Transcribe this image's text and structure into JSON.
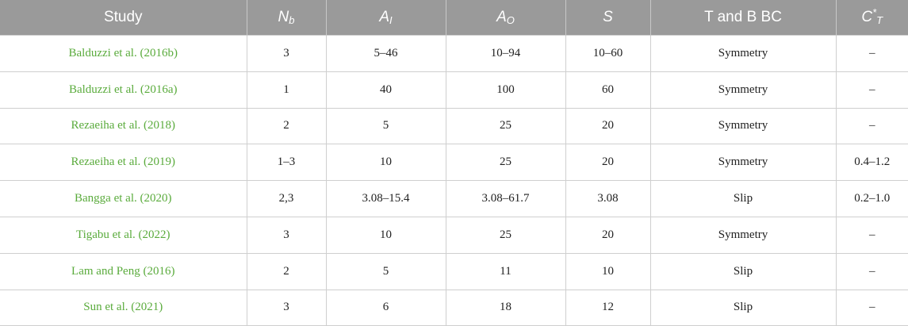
{
  "header": {
    "study": "Study",
    "nb": {
      "main": "N",
      "sub": "b"
    },
    "ai": {
      "main": "A",
      "sub": "I"
    },
    "ao": {
      "main": "A",
      "sub": "O"
    },
    "s": "S",
    "tbbc": "T and B BC",
    "ct": {
      "main": "C",
      "sup": "*",
      "sub": "T"
    }
  },
  "colors": {
    "header_bg": "#9a9a9a",
    "header_text": "#ffffff",
    "study_link": "#5aab3c",
    "grid": "#cfcfcf"
  },
  "rows": [
    {
      "study": "Balduzzi et al. (2016b)",
      "nb": "3",
      "ai": "5–46",
      "ao": "10–94",
      "s": "10–60",
      "bc": "Symmetry",
      "ct": "–"
    },
    {
      "study": "Balduzzi et al. (2016a)",
      "nb": "1",
      "ai": "40",
      "ao": "100",
      "s": "60",
      "bc": "Symmetry",
      "ct": "–"
    },
    {
      "study": "Rezaeiha et al. (2018)",
      "nb": "2",
      "ai": "5",
      "ao": "25",
      "s": "20",
      "bc": "Symmetry",
      "ct": "–"
    },
    {
      "study": "Rezaeiha et al. (2019)",
      "nb": "1–3",
      "ai": "10",
      "ao": "25",
      "s": "20",
      "bc": "Symmetry",
      "ct": "0.4–1.2"
    },
    {
      "study": "Bangga et al. (2020)",
      "nb": "2,3",
      "ai": "3.08–15.4",
      "ao": "3.08–61.7",
      "s": "3.08",
      "bc": "Slip",
      "ct": "0.2–1.0"
    },
    {
      "study": "Tigabu et al. (2022)",
      "nb": "3",
      "ai": "10",
      "ao": "25",
      "s": "20",
      "bc": "Symmetry",
      "ct": "–"
    },
    {
      "study": "Lam and Peng (2016)",
      "nb": "2",
      "ai": "5",
      "ao": "11",
      "s": "10",
      "bc": "Slip",
      "ct": "–"
    },
    {
      "study": "Sun et al. (2021)",
      "nb": "3",
      "ai": "6",
      "ao": "18",
      "s": "12",
      "bc": "Slip",
      "ct": "–"
    }
  ]
}
